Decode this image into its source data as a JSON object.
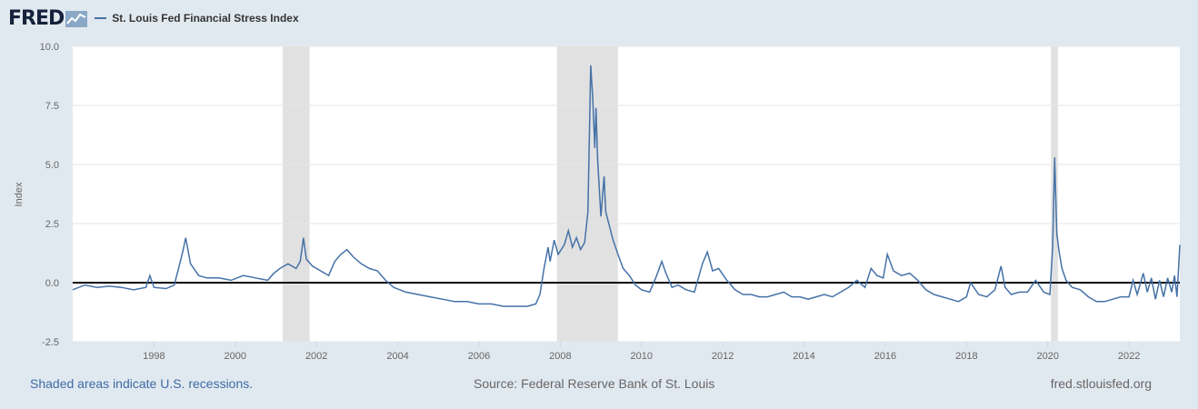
{
  "header": {
    "logo_text": "FRED",
    "logo_icon": "line-chart-icon",
    "legend_label": "St. Louis Fed Financial Stress Index",
    "line_color": "#4572a7"
  },
  "footer": {
    "recession_note": "Shaded areas indicate U.S. recessions.",
    "source": "Source: Federal Reserve Bank of St. Louis",
    "site": "fred.stlouisfed.org"
  },
  "chart_data": {
    "type": "line",
    "ylabel": "Index",
    "ylim": [
      -2.5,
      10
    ],
    "yticks": [
      "10.0",
      "7.5",
      "5.0",
      "2.5",
      "0.0",
      "-2.5"
    ],
    "xlim": [
      1996.0,
      2023.25
    ],
    "xticks": [
      "1998",
      "2000",
      "2002",
      "2004",
      "2006",
      "2008",
      "2010",
      "2012",
      "2014",
      "2016",
      "2018",
      "2020",
      "2022"
    ],
    "grid": "horizontal",
    "reference_line": 0,
    "recessions": [
      [
        2001.17,
        2001.83
      ],
      [
        2007.92,
        2009.42
      ],
      [
        2020.08,
        2020.25
      ]
    ],
    "series": [
      {
        "name": "St. Louis Fed Financial Stress Index",
        "x": [
          1996.0,
          1996.3,
          1996.6,
          1996.9,
          1997.2,
          1997.5,
          1997.8,
          1997.9,
          1998.0,
          1998.3,
          1998.5,
          1998.62,
          1998.72,
          1998.78,
          1998.9,
          1999.1,
          1999.3,
          1999.6,
          1999.9,
          2000.2,
          2000.5,
          2000.8,
          2000.95,
          2001.1,
          2001.3,
          2001.5,
          2001.6,
          2001.68,
          2001.75,
          2001.9,
          2002.1,
          2002.3,
          2002.45,
          2002.6,
          2002.75,
          2002.9,
          2003.1,
          2003.3,
          2003.5,
          2003.7,
          2003.9,
          2004.2,
          2004.5,
          2004.8,
          2005.1,
          2005.4,
          2005.7,
          2006.0,
          2006.3,
          2006.6,
          2006.9,
          2007.2,
          2007.4,
          2007.5,
          2007.6,
          2007.7,
          2007.75,
          2007.85,
          2007.95,
          2008.1,
          2008.2,
          2008.3,
          2008.4,
          2008.5,
          2008.6,
          2008.68,
          2008.75,
          2008.8,
          2008.85,
          2008.88,
          2008.92,
          2009.0,
          2009.08,
          2009.12,
          2009.18,
          2009.3,
          2009.42,
          2009.55,
          2009.7,
          2009.85,
          2010.0,
          2010.2,
          2010.35,
          2010.5,
          2010.6,
          2010.75,
          2010.9,
          2011.1,
          2011.3,
          2011.5,
          2011.62,
          2011.75,
          2011.9,
          2012.1,
          2012.3,
          2012.5,
          2012.7,
          2012.9,
          2013.1,
          2013.3,
          2013.5,
          2013.7,
          2013.9,
          2014.1,
          2014.3,
          2014.5,
          2014.7,
          2014.9,
          2015.1,
          2015.3,
          2015.5,
          2015.65,
          2015.8,
          2015.95,
          2016.05,
          2016.2,
          2016.4,
          2016.6,
          2016.8,
          2017.0,
          2017.2,
          2017.4,
          2017.6,
          2017.8,
          2018.0,
          2018.1,
          2018.3,
          2018.5,
          2018.7,
          2018.85,
          2018.95,
          2019.1,
          2019.3,
          2019.5,
          2019.7,
          2019.9,
          2020.05,
          2020.12,
          2020.17,
          2020.22,
          2020.28,
          2020.35,
          2020.45,
          2020.6,
          2020.8,
          2021.0,
          2021.2,
          2021.4,
          2021.6,
          2021.8,
          2022.0,
          2022.1,
          2022.2,
          2022.35,
          2022.45,
          2022.55,
          2022.65,
          2022.75,
          2022.85,
          2022.95,
          2023.05,
          2023.12,
          2023.18,
          2023.25
        ],
        "y": [
          -0.3,
          -0.1,
          -0.2,
          -0.15,
          -0.2,
          -0.3,
          -0.2,
          0.3,
          -0.2,
          -0.25,
          -0.1,
          0.7,
          1.4,
          1.9,
          0.8,
          0.3,
          0.2,
          0.2,
          0.1,
          0.3,
          0.2,
          0.1,
          0.4,
          0.6,
          0.8,
          0.6,
          0.9,
          1.9,
          1.0,
          0.7,
          0.5,
          0.3,
          0.9,
          1.2,
          1.4,
          1.1,
          0.8,
          0.6,
          0.5,
          0.1,
          -0.2,
          -0.4,
          -0.5,
          -0.6,
          -0.7,
          -0.8,
          -0.8,
          -0.9,
          -0.9,
          -1.0,
          -1.0,
          -1.0,
          -0.9,
          -0.5,
          0.6,
          1.5,
          0.9,
          1.8,
          1.2,
          1.6,
          2.2,
          1.5,
          1.9,
          1.4,
          1.7,
          3.0,
          9.2,
          7.8,
          5.7,
          7.4,
          5.2,
          2.8,
          4.5,
          3.0,
          2.6,
          1.8,
          1.2,
          0.6,
          0.3,
          -0.1,
          -0.3,
          -0.4,
          0.2,
          0.9,
          0.4,
          -0.2,
          -0.1,
          -0.3,
          -0.4,
          0.8,
          1.3,
          0.5,
          0.6,
          0.1,
          -0.3,
          -0.5,
          -0.5,
          -0.6,
          -0.6,
          -0.5,
          -0.4,
          -0.6,
          -0.6,
          -0.7,
          -0.6,
          -0.5,
          -0.6,
          -0.4,
          -0.2,
          0.1,
          -0.2,
          0.6,
          0.3,
          0.2,
          1.2,
          0.5,
          0.3,
          0.4,
          0.1,
          -0.3,
          -0.5,
          -0.6,
          -0.7,
          -0.8,
          -0.6,
          0.0,
          -0.5,
          -0.6,
          -0.3,
          0.7,
          -0.2,
          -0.5,
          -0.4,
          -0.4,
          0.1,
          -0.4,
          -0.5,
          1.5,
          5.3,
          2.1,
          1.3,
          0.6,
          0.1,
          -0.2,
          -0.3,
          -0.6,
          -0.8,
          -0.8,
          -0.7,
          -0.6,
          -0.6,
          0.1,
          -0.5,
          0.4,
          -0.4,
          0.2,
          -0.7,
          0.1,
          -0.6,
          0.2,
          -0.4,
          0.3,
          -0.6,
          1.6
        ]
      }
    ]
  }
}
